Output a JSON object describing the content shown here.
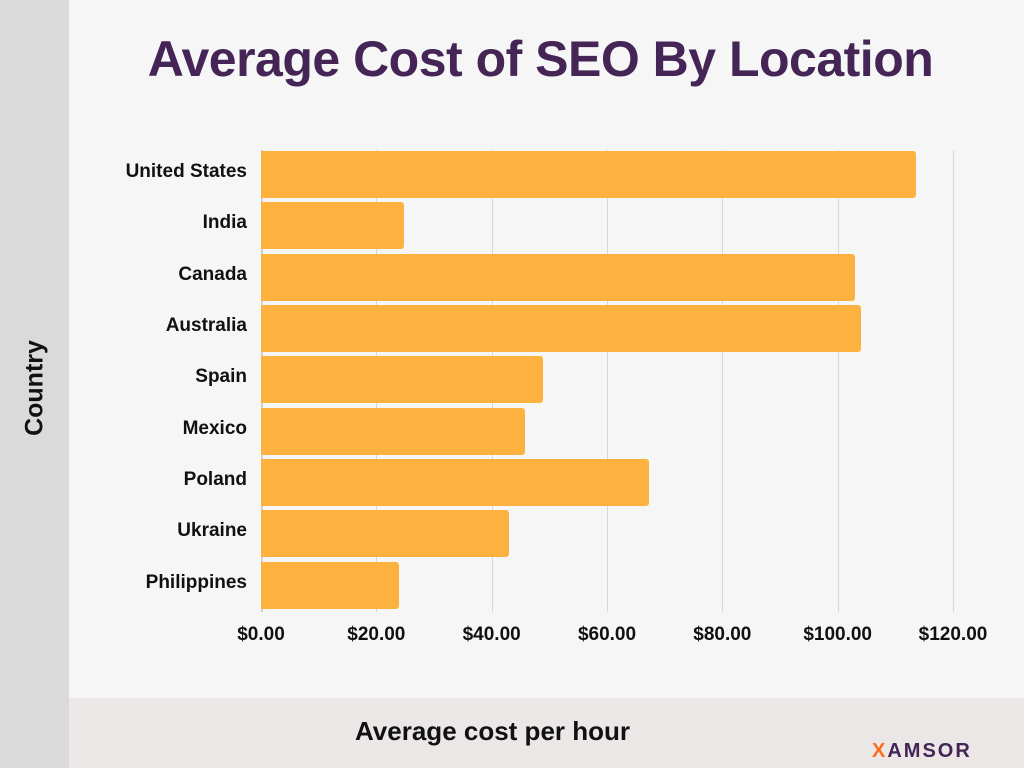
{
  "title": "Average Cost of SEO By Location",
  "brand": {
    "x_letter": "X",
    "rest": "AMSOR",
    "accent": "#ff6a1a",
    "color": "#452456"
  },
  "colors": {
    "bar": "#fdb23f",
    "title": "#452456"
  },
  "chart_data": {
    "type": "bar",
    "orientation": "horizontal",
    "title": "Average Cost of SEO By Location",
    "xlabel": "Average cost per hour",
    "ylabel": "Country",
    "categories": [
      "United States",
      "India",
      "Canada",
      "Australia",
      "Spain",
      "Mexico",
      "Poland",
      "Ukraine",
      "Philippines"
    ],
    "values": [
      113.5,
      24.8,
      103,
      104,
      48.9,
      45.8,
      67.2,
      43,
      23.9
    ],
    "xlim": [
      0,
      120
    ],
    "x_ticks": [
      "$0.00",
      "$20.00",
      "$40.00",
      "$60.00",
      "$80.00",
      "$100.00",
      "$120.00"
    ],
    "grid": true,
    "legend": null
  }
}
